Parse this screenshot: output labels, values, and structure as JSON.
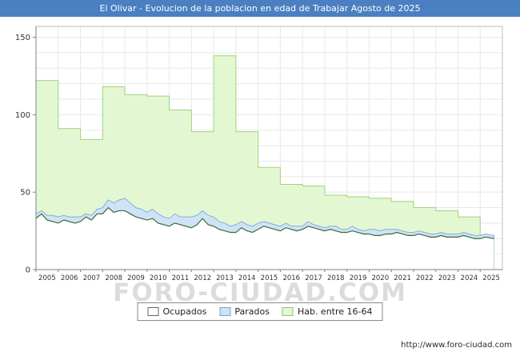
{
  "title": "El Olivar - Evolucion de la poblacion en edad de Trabajar Agosto de 2025",
  "watermark": "FORO-CIUDAD.COM",
  "footer_url": "http://www.foro-ciudad.com",
  "colors": {
    "title_bar": "#4a7fc1",
    "grid": "#e8e8e8",
    "axis": "#808080",
    "plot_border": "#bdbdbd",
    "tick_text": "#333333",
    "watermark": "#dcdcdc"
  },
  "legend": [
    {
      "label": "Ocupados",
      "fill": "#ffffff",
      "border": "#666666"
    },
    {
      "label": "Parados",
      "fill": "#cfe3f6",
      "border": "#7aa0cc"
    },
    {
      "label": "Hab. entre 16-64",
      "fill": "#e3f8d2",
      "border": "#94c270"
    }
  ],
  "chart_data": {
    "type": "area",
    "title": "El Olivar - Evolucion de la poblacion en edad de Trabajar Agosto de 2025",
    "xlabel": "",
    "ylabel": "",
    "ylim": [
      0,
      157
    ],
    "yticks": [
      0,
      50,
      100,
      150
    ],
    "grid": true,
    "legend_position": "bottom",
    "series_hab": {
      "name": "Hab. entre 16-64",
      "style": "step-area",
      "fill": "#e3f8d2",
      "stroke": "#a3d17f",
      "years": [
        2005,
        2006,
        2007,
        2008,
        2009,
        2010,
        2011,
        2012,
        2013,
        2014,
        2015,
        2016,
        2017,
        2018,
        2019,
        2020,
        2021,
        2022,
        2023,
        2024,
        2025
      ],
      "values": [
        122,
        91,
        84,
        118,
        113,
        112,
        103,
        89,
        138,
        89,
        66,
        55,
        54,
        48,
        47,
        46,
        44,
        40,
        38,
        34,
        22
      ]
    },
    "series_parados": {
      "name": "Parados",
      "style": "area-stacked-on-ocupados",
      "fill": "#cfe3f6",
      "stroke": "#86aed6",
      "x_start": 2005,
      "x_step": 0.25,
      "values": [
        3,
        2,
        3,
        4,
        4,
        3,
        3,
        4,
        3,
        2,
        3,
        3,
        4,
        5,
        6,
        7,
        8,
        7,
        6,
        6,
        5,
        6,
        6,
        5,
        5,
        6,
        5,
        6,
        7,
        6,
        5,
        6,
        6,
        5,
        5,
        4,
        5,
        4,
        4,
        4,
        4,
        3,
        3,
        3,
        3,
        3,
        2,
        3,
        2,
        3,
        2,
        2,
        2,
        2,
        3,
        2,
        2,
        3,
        2,
        2,
        3,
        4,
        3,
        3,
        3,
        2,
        2,
        2,
        2,
        2,
        2,
        2,
        2,
        2,
        2,
        2,
        2,
        2,
        2,
        2,
        2,
        2,
        2
      ]
    },
    "series_ocupados": {
      "name": "Ocupados",
      "style": "area",
      "fill": "#ffffff",
      "stroke": "#3a6b35",
      "x_start": 2005,
      "x_step": 0.25,
      "values": [
        33,
        36,
        32,
        31,
        30,
        32,
        31,
        30,
        31,
        34,
        32,
        36,
        36,
        40,
        37,
        38,
        38,
        36,
        34,
        33,
        32,
        33,
        30,
        29,
        28,
        30,
        29,
        28,
        27,
        29,
        33,
        29,
        28,
        26,
        25,
        24,
        24,
        27,
        25,
        24,
        26,
        28,
        27,
        26,
        25,
        27,
        26,
        25,
        26,
        28,
        27,
        26,
        25,
        26,
        25,
        24,
        24,
        25,
        24,
        23,
        23,
        22,
        22,
        23,
        23,
        24,
        23,
        22,
        22,
        23,
        22,
        21,
        21,
        22,
        21,
        21,
        21,
        22,
        21,
        20,
        20,
        21,
        20
      ]
    }
  }
}
